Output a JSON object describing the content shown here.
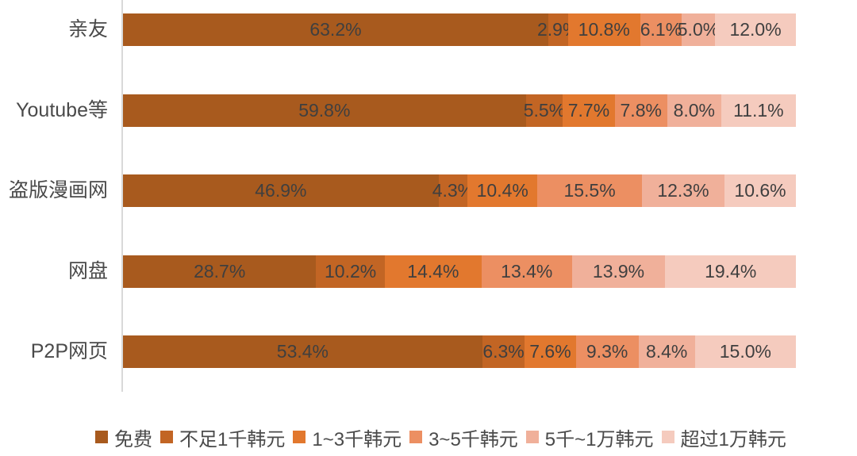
{
  "chart_data": {
    "type": "bar",
    "orientation": "horizontal",
    "stacked": true,
    "normalized": true,
    "title": "",
    "xlabel": "",
    "ylabel": "",
    "xlim": [
      0,
      100
    ],
    "grid": false,
    "legend_position": "bottom",
    "categories": [
      "亲友",
      "Youtube等",
      "盗版漫画网",
      "网盘",
      "P2P网页"
    ],
    "series": [
      {
        "name": "免费",
        "color": "#a85a1e",
        "values": [
          63.2,
          59.8,
          46.9,
          28.7,
          53.4
        ]
      },
      {
        "name": "不足1千韩元",
        "color": "#c26524",
        "values": [
          2.9,
          5.5,
          4.3,
          10.2,
          6.3
        ]
      },
      {
        "name": "1~3千韩元",
        "color": "#e2782e",
        "values": [
          10.8,
          7.7,
          10.4,
          14.4,
          7.6
        ]
      },
      {
        "name": "3~5千韩元",
        "color": "#ec8f62",
        "values": [
          6.1,
          7.8,
          15.5,
          13.4,
          9.3
        ]
      },
      {
        "name": "5千~1万韩元",
        "color": "#f0b09a",
        "values": [
          5.0,
          8.0,
          12.3,
          13.9,
          8.4
        ]
      },
      {
        "name": "超过1万韩元",
        "color": "#f5cbbe",
        "values": [
          12.0,
          11.1,
          10.6,
          19.4,
          15.0
        ]
      }
    ],
    "data_labels": [
      [
        "63.2%",
        "2.9%",
        "10.8%",
        "6.1%",
        "5.0%",
        "12.0%"
      ],
      [
        "59.8%",
        "5.5%",
        "7.7%",
        "7.8%",
        "8.0%",
        "11.1%"
      ],
      [
        "46.9%",
        "4.3%",
        "10.4%",
        "15.5%",
        "12.3%",
        "10.6%"
      ],
      [
        "28.7%",
        "10.2%",
        "14.4%",
        "13.4%",
        "13.9%",
        "19.4%"
      ],
      [
        "53.4%",
        "6.3%",
        "7.6%",
        "9.3%",
        "8.4%",
        "15.0%"
      ]
    ]
  },
  "legend": {
    "items": [
      {
        "label": "免费",
        "color": "#a85a1e"
      },
      {
        "label": "不足1千韩元",
        "color": "#c26524"
      },
      {
        "label": "1~3千韩元",
        "color": "#e2782e"
      },
      {
        "label": "3~5千韩元",
        "color": "#ec8f62"
      },
      {
        "label": "5千~1万韩元",
        "color": "#f0b09a"
      },
      {
        "label": "超过1万韩元",
        "color": "#f5cbbe"
      }
    ]
  }
}
